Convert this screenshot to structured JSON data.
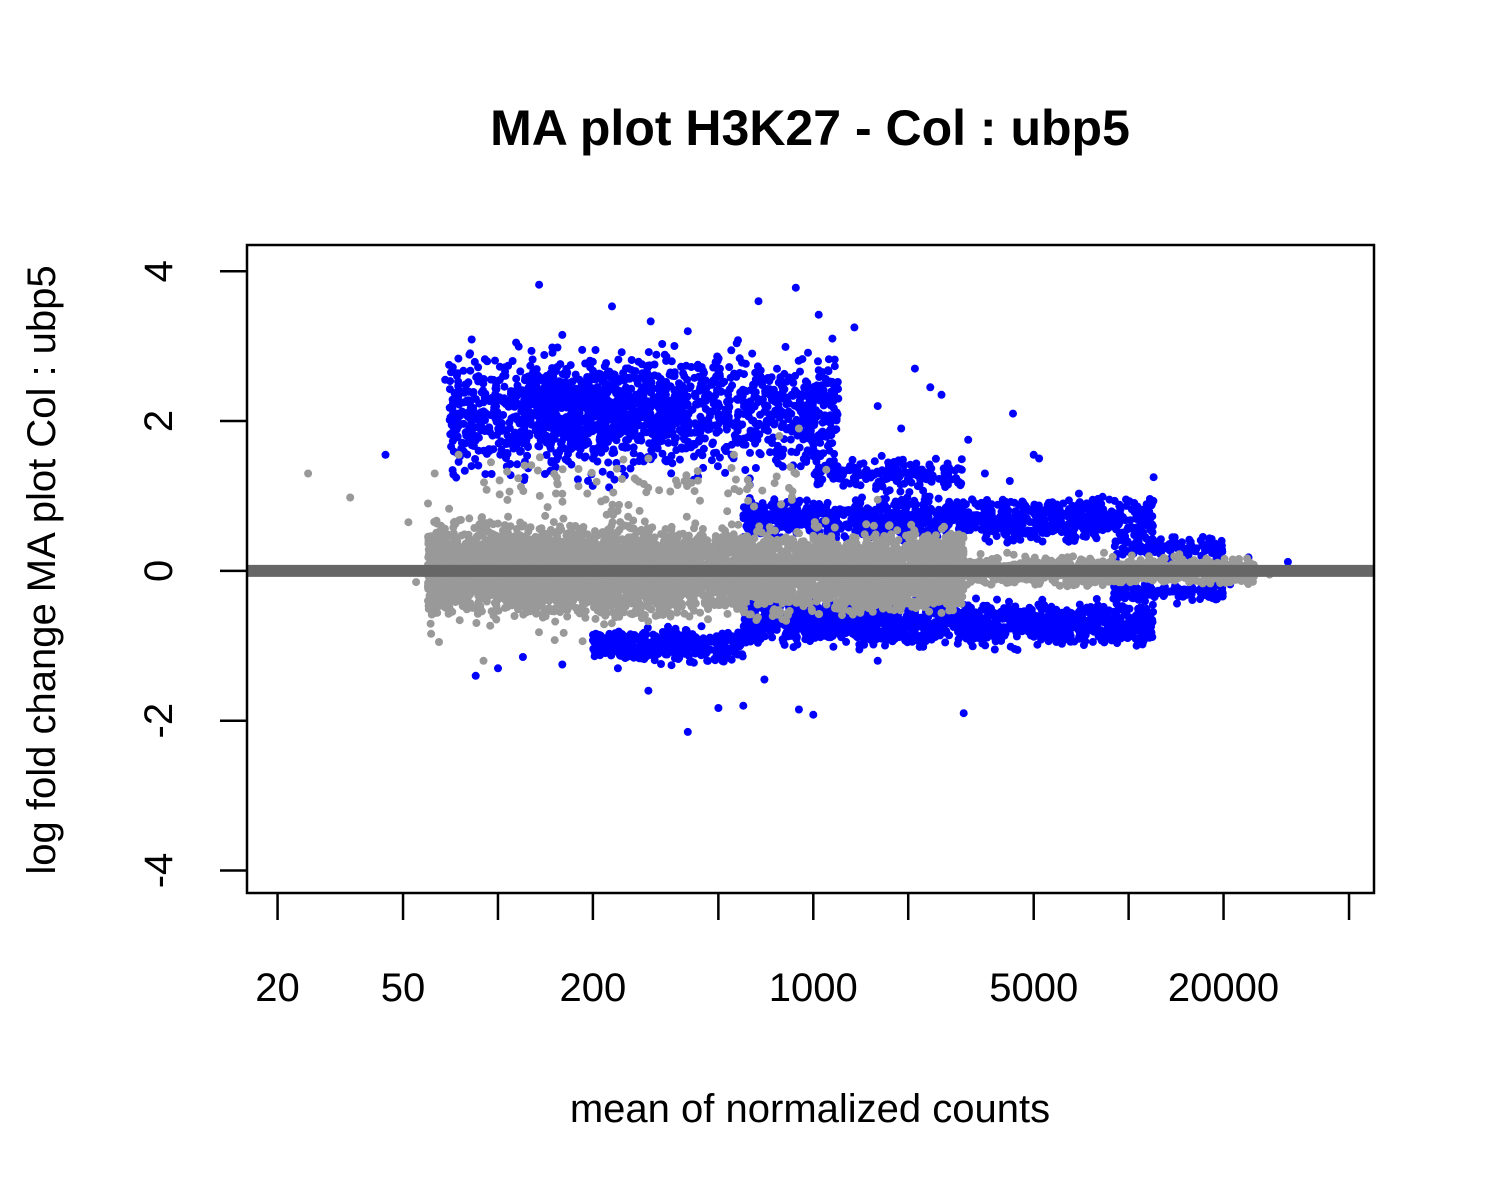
{
  "chart_data": {
    "type": "scatter",
    "title": "MA plot H3K27 - Col : ubp5",
    "xlabel": "mean of normalized counts",
    "ylabel": "log fold change MA plot Col : ubp5",
    "x_scale": "log10",
    "xlim": [
      16,
      60000
    ],
    "ylim": [
      -4.3,
      4.35
    ],
    "x_ticks": [
      20,
      50,
      100,
      200,
      500,
      1000,
      2000,
      5000,
      10000,
      20000,
      50000
    ],
    "x_tick_labels": [
      "20",
      "50",
      "",
      "200",
      "",
      "1000",
      "",
      "5000",
      "",
      "20000",
      ""
    ],
    "y_ticks": [
      -4,
      -2,
      0,
      2,
      4
    ],
    "y_tick_labels": [
      "-4",
      "-2",
      "0",
      "2",
      "4"
    ],
    "reference_line": {
      "y": 0,
      "color": "#666666"
    },
    "grid": false,
    "colors": {
      "significant": "#0000ff",
      "not_significant": "#999999"
    },
    "series": [
      {
        "color": "#0000ff",
        "points": [
          [
            135,
            3.82
          ],
          [
            230,
            3.53
          ],
          [
            880,
            3.78
          ],
          [
            670,
            3.6
          ],
          [
            1040,
            3.42
          ],
          [
            160,
            3.15
          ],
          [
            305,
            3.33
          ],
          [
            1350,
            3.25
          ],
          [
            1150,
            3.1
          ],
          [
            185,
            2.95
          ],
          [
            400,
            3.2
          ],
          [
            640,
            2.9
          ],
          [
            2100,
            2.7
          ],
          [
            2350,
            2.45
          ],
          [
            2550,
            2.35
          ],
          [
            4300,
            2.1
          ],
          [
            3100,
            1.75
          ],
          [
            5000,
            1.55
          ],
          [
            5200,
            1.5
          ],
          [
            12000,
            1.25
          ],
          [
            44,
            1.55
          ],
          [
            400,
            -2.15
          ],
          [
            3000,
            -1.9
          ],
          [
            1000,
            -1.92
          ],
          [
            900,
            -1.85
          ],
          [
            500,
            -1.83
          ],
          [
            600,
            -1.8
          ],
          [
            70,
            2.75
          ],
          [
            68,
            2.55
          ],
          [
            72,
            2.1
          ],
          [
            110,
            2.4
          ],
          [
            90,
            2.25
          ],
          [
            520,
            2.0
          ],
          [
            780,
            2.1
          ],
          [
            1600,
            2.2
          ],
          [
            1900,
            1.9
          ],
          [
            1200,
            2.3
          ],
          [
            3500,
            1.3
          ],
          [
            2600,
            1.2
          ],
          [
            4200,
            1.2
          ],
          [
            6200,
            0.9
          ],
          [
            8500,
            0.6
          ],
          [
            14000,
            0.45
          ],
          [
            17000,
            0.2
          ],
          [
            24000,
            0.18
          ],
          [
            32000,
            0.12
          ],
          [
            21000,
            -0.18
          ],
          [
            15000,
            -0.25
          ],
          [
            9000,
            -0.3
          ],
          [
            7000,
            -0.45
          ],
          [
            4500,
            -0.55
          ],
          [
            3000,
            -0.6
          ],
          [
            2000,
            -0.9
          ],
          [
            1600,
            -1.2
          ],
          [
            1400,
            -1.05
          ],
          [
            700,
            -1.45
          ],
          [
            300,
            -1.6
          ],
          [
            240,
            -1.3
          ],
          [
            160,
            -1.25
          ],
          [
            120,
            -1.15
          ],
          [
            100,
            -1.3
          ],
          [
            85,
            -1.4
          ]
        ],
        "clusters": [
          {
            "x_range": [
              70,
              1200
            ],
            "y_range": [
              1.0,
              3.2
            ],
            "n": 1400
          },
          {
            "x_range": [
              120,
              400
            ],
            "y_range": [
              1.5,
              2.9
            ],
            "n": 400
          },
          {
            "x_range": [
              600,
              12000
            ],
            "y_range": [
              0.3,
              1.1
            ],
            "n": 1000
          },
          {
            "x_range": [
              600,
              12000
            ],
            "y_range": [
              -1.1,
              -0.3
            ],
            "n": 1400
          },
          {
            "x_range": [
              200,
              600
            ],
            "y_range": [
              -1.3,
              -0.7
            ],
            "n": 400
          },
          {
            "x_range": [
              1000,
              3000
            ],
            "y_range": [
              1.0,
              1.6
            ],
            "n": 180
          },
          {
            "x_range": [
              9000,
              20000
            ],
            "y_range": [
              0.12,
              0.5
            ],
            "n": 120
          },
          {
            "x_range": [
              9000,
              20000
            ],
            "y_range": [
              -0.45,
              -0.12
            ],
            "n": 120
          }
        ]
      },
      {
        "color": "#999999",
        "points": [
          [
            25,
            1.3
          ],
          [
            34,
            0.98
          ],
          [
            52,
            0.65
          ],
          [
            55,
            -0.15
          ],
          [
            60,
            -0.4
          ],
          [
            65,
            -0.95
          ],
          [
            60,
            0.9
          ],
          [
            63,
            1.3
          ],
          [
            75,
            1.55
          ],
          [
            90,
            -1.2
          ],
          [
            780,
            1.8
          ],
          [
            900,
            1.9
          ],
          [
            300,
            1.5
          ],
          [
            560,
            1.55
          ],
          [
            1100,
            1.35
          ],
          [
            1600,
            0.95
          ],
          [
            22000,
            0.02
          ],
          [
            28000,
            -0.05
          ],
          [
            50000,
            0.0
          ],
          [
            40000,
            0.01
          ]
        ],
        "clusters": [
          {
            "x_range": [
              60,
              3000
            ],
            "y_range": [
              -0.75,
              0.75
            ],
            "n": 5000
          },
          {
            "x_range": [
              60,
              300
            ],
            "y_range": [
              -1.0,
              1.0
            ],
            "n": 700
          },
          {
            "x_range": [
              3000,
              25000
            ],
            "y_range": [
              -0.25,
              0.25
            ],
            "n": 900
          },
          {
            "x_range": [
              90,
              900
            ],
            "y_range": [
              0.7,
              1.6
            ],
            "n": 80
          }
        ]
      }
    ]
  }
}
